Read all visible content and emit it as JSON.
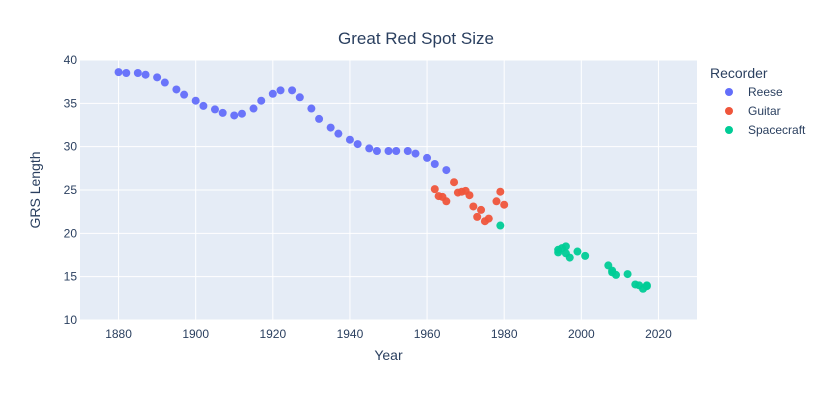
{
  "chart_data": {
    "type": "scatter",
    "title": "Great Red Spot Size",
    "xlabel": "Year",
    "ylabel": "GRS Length",
    "xlim": [
      1870,
      2030
    ],
    "ylim": [
      10,
      40
    ],
    "x_ticks": [
      1880,
      1900,
      1920,
      1940,
      1960,
      1980,
      2000,
      2020
    ],
    "y_ticks": [
      10,
      15,
      20,
      25,
      30,
      35,
      40
    ],
    "grid": true,
    "legend_title": "Recorder",
    "legend_position": "right",
    "series": [
      {
        "name": "Reese",
        "color": "#636efa",
        "points": [
          [
            1880,
            38.6
          ],
          [
            1882,
            38.5
          ],
          [
            1885,
            38.5
          ],
          [
            1887,
            38.3
          ],
          [
            1890,
            38.0
          ],
          [
            1892,
            37.4
          ],
          [
            1895,
            36.6
          ],
          [
            1897,
            36.0
          ],
          [
            1900,
            35.3
          ],
          [
            1902,
            34.7
          ],
          [
            1905,
            34.3
          ],
          [
            1907,
            33.9
          ],
          [
            1910,
            33.6
          ],
          [
            1912,
            33.8
          ],
          [
            1915,
            34.4
          ],
          [
            1917,
            35.3
          ],
          [
            1920,
            36.1
          ],
          [
            1922,
            36.5
          ],
          [
            1925,
            36.5
          ],
          [
            1927,
            35.7
          ],
          [
            1930,
            34.4
          ],
          [
            1932,
            33.2
          ],
          [
            1935,
            32.2
          ],
          [
            1937,
            31.5
          ],
          [
            1940,
            30.8
          ],
          [
            1942,
            30.3
          ],
          [
            1945,
            29.8
          ],
          [
            1947,
            29.5
          ],
          [
            1950,
            29.5
          ],
          [
            1952,
            29.5
          ],
          [
            1955,
            29.5
          ],
          [
            1957,
            29.2
          ],
          [
            1960,
            28.7
          ],
          [
            1962,
            28.0
          ],
          [
            1965,
            27.3
          ]
        ]
      },
      {
        "name": "Guitar",
        "color": "#ef553b",
        "points": [
          [
            1962,
            25.1
          ],
          [
            1963,
            24.3
          ],
          [
            1964,
            24.2
          ],
          [
            1965,
            23.7
          ],
          [
            1967,
            25.9
          ],
          [
            1968,
            24.7
          ],
          [
            1969,
            24.8
          ],
          [
            1970,
            24.9
          ],
          [
            1971,
            24.4
          ],
          [
            1972,
            23.1
          ],
          [
            1973,
            21.9
          ],
          [
            1974,
            22.7
          ],
          [
            1975,
            21.4
          ],
          [
            1976,
            21.7
          ],
          [
            1978,
            23.7
          ],
          [
            1979,
            24.8
          ],
          [
            1980,
            23.3
          ]
        ]
      },
      {
        "name": "Spacecraft",
        "color": "#00cc96",
        "points": [
          [
            1979,
            20.9
          ],
          [
            1994,
            18.1
          ],
          [
            1994,
            17.8
          ],
          [
            1995,
            18.3
          ],
          [
            1996,
            18.5
          ],
          [
            1996,
            17.7
          ],
          [
            1997,
            17.2
          ],
          [
            1999,
            17.9
          ],
          [
            2001,
            17.4
          ],
          [
            2007,
            16.3
          ],
          [
            2008,
            15.7
          ],
          [
            2008,
            15.5
          ],
          [
            2009,
            15.2
          ],
          [
            2012,
            15.3
          ],
          [
            2014,
            14.1
          ],
          [
            2015,
            14.0
          ],
          [
            2016,
            13.6
          ],
          [
            2017,
            13.9
          ],
          [
            2017,
            14.0
          ]
        ]
      }
    ]
  }
}
